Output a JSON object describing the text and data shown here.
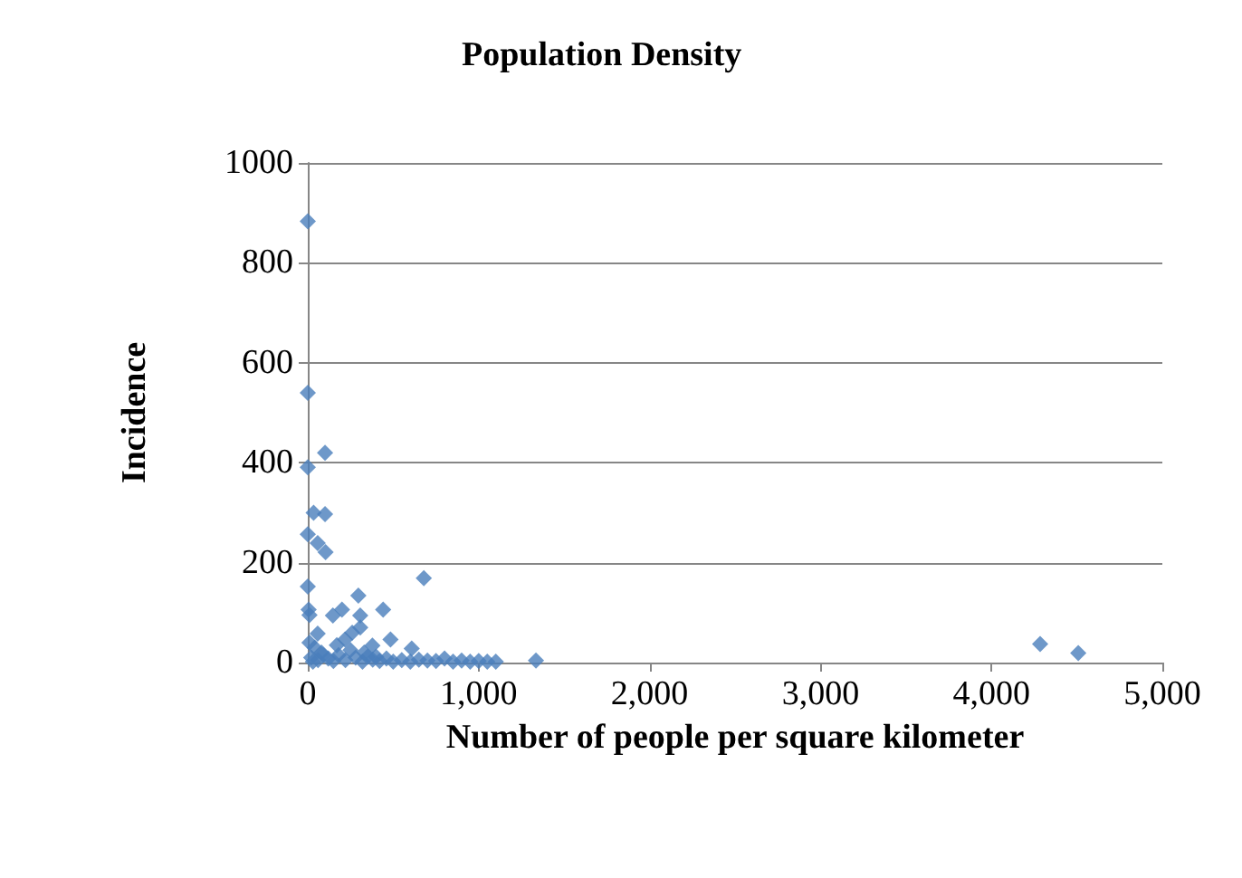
{
  "chart_data": {
    "type": "scatter",
    "title": "Population Density",
    "xlabel": "Number of people per square kilometer",
    "ylabel": "Incidence",
    "series": [
      {
        "color": "#4a7ebb",
        "x": [
          0,
          0,
          0,
          101,
          34,
          101,
          0,
          58,
          104,
          0,
          5,
          10,
          679,
          296,
          441,
          200,
          147,
          307,
          307,
          58,
          218,
          484,
          608,
          378,
          20,
          40,
          60,
          80,
          120,
          150,
          180,
          220,
          250,
          280,
          320,
          350,
          380,
          420,
          460,
          500,
          550,
          600,
          650,
          700,
          750,
          800,
          850,
          900,
          950,
          1000,
          1050,
          1100,
          1335,
          4285,
          4508,
          10,
          90,
          260,
          330,
          170,
          400,
          30
        ],
        "values": [
          883,
          540,
          391,
          420,
          300,
          297,
          257,
          239,
          221,
          152,
          106,
          95,
          169,
          134,
          106,
          106,
          94,
          94,
          70,
          58,
          46,
          46,
          28,
          34,
          10,
          30,
          5,
          20,
          8,
          3,
          15,
          5,
          25,
          10,
          2,
          12,
          6,
          3,
          8,
          2,
          5,
          2,
          6,
          4,
          3,
          8,
          2,
          4,
          2,
          3,
          2,
          2,
          4,
          37,
          19,
          40,
          15,
          60,
          20,
          35,
          12,
          2
        ]
      }
    ],
    "xlim": [
      0,
      5000
    ],
    "xticks": [
      0,
      {
        "value": 1000,
        "label": "1,000"
      },
      {
        "value": 2000,
        "label": "2,000"
      },
      {
        "value": 3000,
        "label": "3,000"
      },
      {
        "value": 4000,
        "label": "4,000"
      },
      {
        "value": 5000,
        "label": "5,000"
      }
    ],
    "ylim": [
      0,
      1000
    ],
    "yticks": [
      0,
      200,
      400,
      600,
      800,
      1000
    ],
    "grid": "y",
    "marker": "diamond"
  }
}
